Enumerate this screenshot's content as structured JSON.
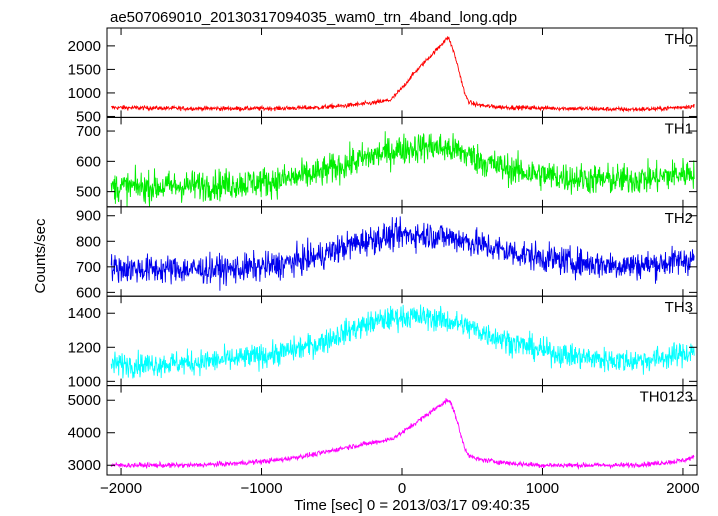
{
  "chart_data": {
    "type": "line",
    "title": "ae507069010_20130317094035_wam0_trn_4band_long.qdp",
    "xlabel": "Time [sec] 0 = 2013/03/17 09:40:35",
    "ylabel": "Counts/sec",
    "xlim": [
      -2100,
      2100
    ],
    "xticks": [
      -2000,
      -1000,
      0,
      1000,
      2000
    ],
    "grid": false,
    "panels": [
      {
        "name": "TH0",
        "color": "#ff0000",
        "ylim": [
          480,
          2380
        ],
        "yticks": [
          500,
          1000,
          1500,
          2000
        ],
        "x": [
          -2070,
          -1800,
          -1500,
          -1200,
          -900,
          -600,
          -400,
          -200,
          -80,
          0,
          80,
          160,
          240,
          300,
          330,
          360,
          390,
          420,
          450,
          480,
          520,
          600,
          700,
          800,
          1000,
          1200,
          1400,
          1600,
          1800,
          2000,
          2080
        ],
        "y": [
          690,
          680,
          670,
          670,
          670,
          690,
          730,
          790,
          850,
          1100,
          1400,
          1650,
          1900,
          2100,
          2180,
          1950,
          1650,
          1300,
          950,
          800,
          760,
          720,
          700,
          690,
          680,
          670,
          660,
          650,
          660,
          700,
          720
        ],
        "noise": 45
      },
      {
        "name": "TH1",
        "color": "#00ee00",
        "ylim": [
          450,
          745
        ],
        "yticks": [
          500,
          600,
          700
        ],
        "x": [
          -2070,
          -1800,
          -1500,
          -1200,
          -900,
          -600,
          -400,
          -200,
          0,
          200,
          400,
          600,
          800,
          1000,
          1200,
          1400,
          1600,
          1800,
          2000,
          2080
        ],
        "y": [
          515,
          515,
          520,
          525,
          535,
          560,
          590,
          620,
          640,
          650,
          635,
          595,
          570,
          555,
          545,
          540,
          540,
          545,
          560,
          565
        ],
        "noise": 50
      },
      {
        "name": "TH2",
        "color": "#0000ee",
        "ylim": [
          585,
          935
        ],
        "yticks": [
          600,
          700,
          800,
          900
        ],
        "x": [
          -2070,
          -1800,
          -1500,
          -1200,
          -900,
          -600,
          -400,
          -200,
          0,
          200,
          400,
          600,
          800,
          1000,
          1200,
          1400,
          1600,
          1800,
          2000,
          2080
        ],
        "y": [
          695,
          690,
          690,
          690,
          705,
          740,
          780,
          810,
          825,
          825,
          810,
          780,
          755,
          735,
          720,
          710,
          705,
          710,
          725,
          730
        ],
        "noise": 55
      },
      {
        "name": "TH3",
        "color": "#00ffff",
        "ylim": [
          975,
          1500
        ],
        "yticks": [
          1000,
          1200,
          1400
        ],
        "x": [
          -2070,
          -1800,
          -1500,
          -1200,
          -900,
          -600,
          -400,
          -200,
          0,
          200,
          400,
          600,
          800,
          1000,
          1200,
          1400,
          1600,
          1800,
          2000,
          2080
        ],
        "y": [
          1100,
          1100,
          1110,
          1130,
          1160,
          1220,
          1290,
          1350,
          1380,
          1375,
          1340,
          1280,
          1225,
          1180,
          1150,
          1130,
          1120,
          1130,
          1160,
          1180
        ],
        "noise": 70
      },
      {
        "name": "TH0123",
        "color": "#ff00ff",
        "ylim": [
          2700,
          5450
        ],
        "yticks": [
          3000,
          4000,
          5000
        ],
        "x": [
          -2070,
          -1800,
          -1500,
          -1200,
          -900,
          -600,
          -400,
          -200,
          -80,
          0,
          80,
          160,
          240,
          300,
          330,
          360,
          390,
          420,
          450,
          480,
          520,
          600,
          700,
          800,
          1000,
          1200,
          1400,
          1600,
          1800,
          2000,
          2080
        ],
        "y": [
          3000,
          3000,
          3000,
          3050,
          3150,
          3350,
          3550,
          3700,
          3800,
          4000,
          4250,
          4500,
          4750,
          4950,
          5000,
          4800,
          4400,
          3900,
          3500,
          3300,
          3200,
          3150,
          3100,
          3050,
          3000,
          3000,
          3000,
          3000,
          3050,
          3150,
          3250
        ],
        "noise": 75
      }
    ]
  }
}
